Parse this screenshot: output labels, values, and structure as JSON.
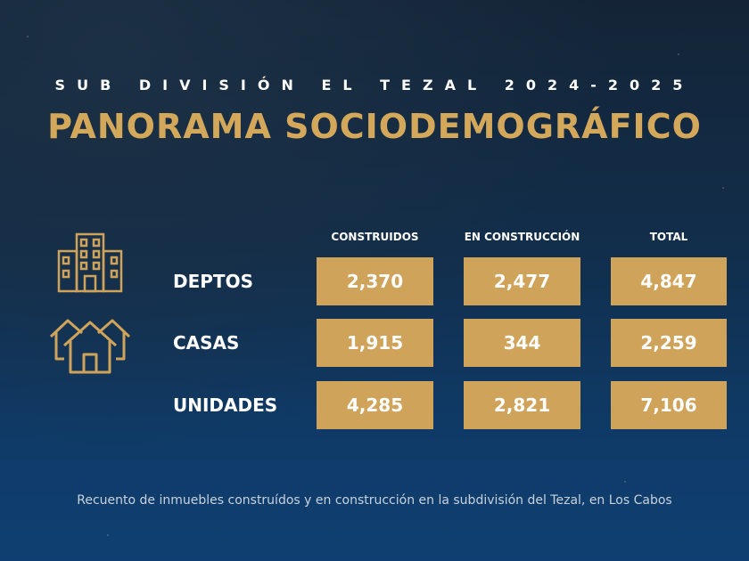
{
  "header": {
    "subtitle": "SUB DIVISIÓN EL TEZAL 2024-2025",
    "title": "PANORAMA SOCIODEMOGRÁFICO"
  },
  "table": {
    "columns": [
      "CONSTRUIDOS",
      "EN CONSTRUCCIÓN",
      "TOTAL"
    ],
    "rows": [
      {
        "label": "DEPTOS",
        "values": [
          "2,370",
          "2,477",
          "4,847"
        ]
      },
      {
        "label": "CASAS",
        "values": [
          "1,915",
          "344",
          "2,259"
        ]
      },
      {
        "label": "UNIDADES",
        "values": [
          "4,285",
          "2,821",
          "7,106"
        ]
      }
    ]
  },
  "icons": {
    "building": "building-icon",
    "houses": "houses-icon"
  },
  "colors": {
    "accent": "#d0a35a",
    "background_top": "#142436",
    "background_bottom": "#0f3f72"
  },
  "footer": {
    "caption": "Recuento de inmuebles construídos y en construcción en la subdivisión del Tezal, en Los Cabos"
  }
}
